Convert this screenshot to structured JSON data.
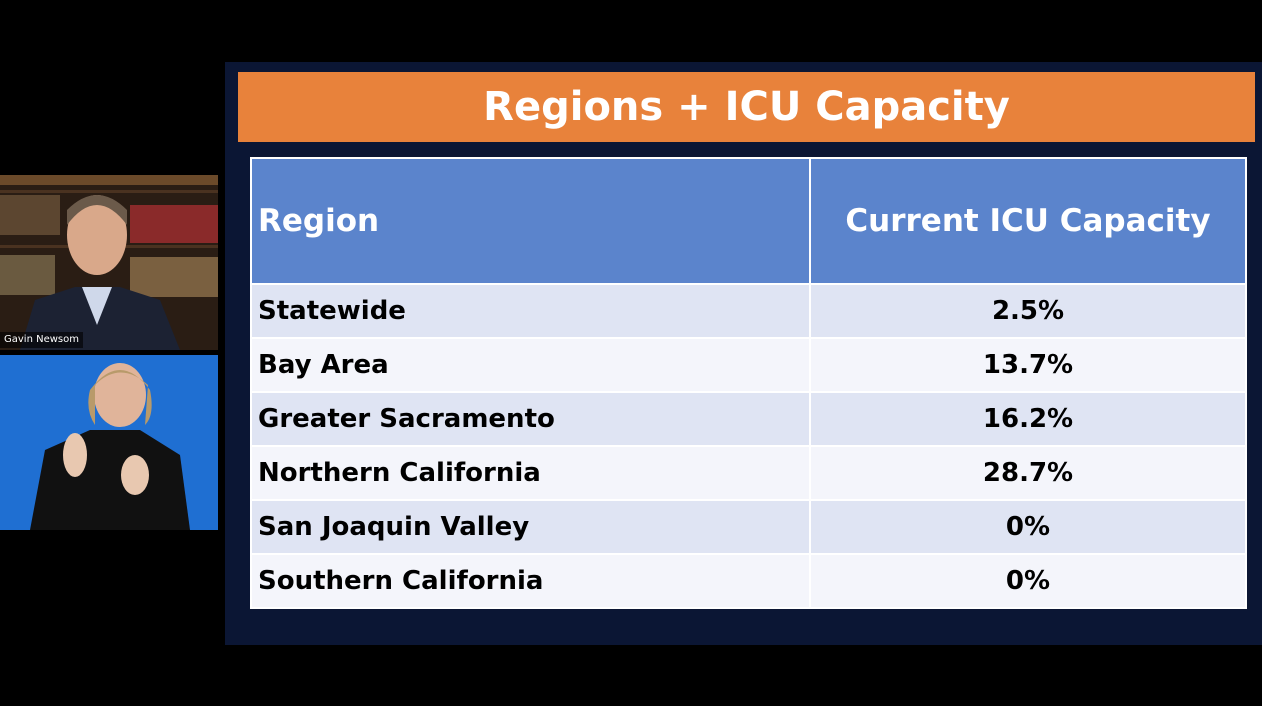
{
  "participants": [
    {
      "name": "Gavin Newsom"
    }
  ],
  "slide": {
    "title": "Regions + ICU Capacity",
    "table": {
      "header": [
        "Region",
        "Current ICU Capacity"
      ],
      "rows": [
        [
          "Statewide",
          "2.5%"
        ],
        [
          "Bay Area",
          "13.7%"
        ],
        [
          "Greater Sacramento",
          "16.2%"
        ],
        [
          "Northern California",
          "28.7%"
        ],
        [
          "San Joaquin Valley",
          "0%"
        ],
        [
          "Southern California",
          "0%"
        ]
      ]
    }
  }
}
